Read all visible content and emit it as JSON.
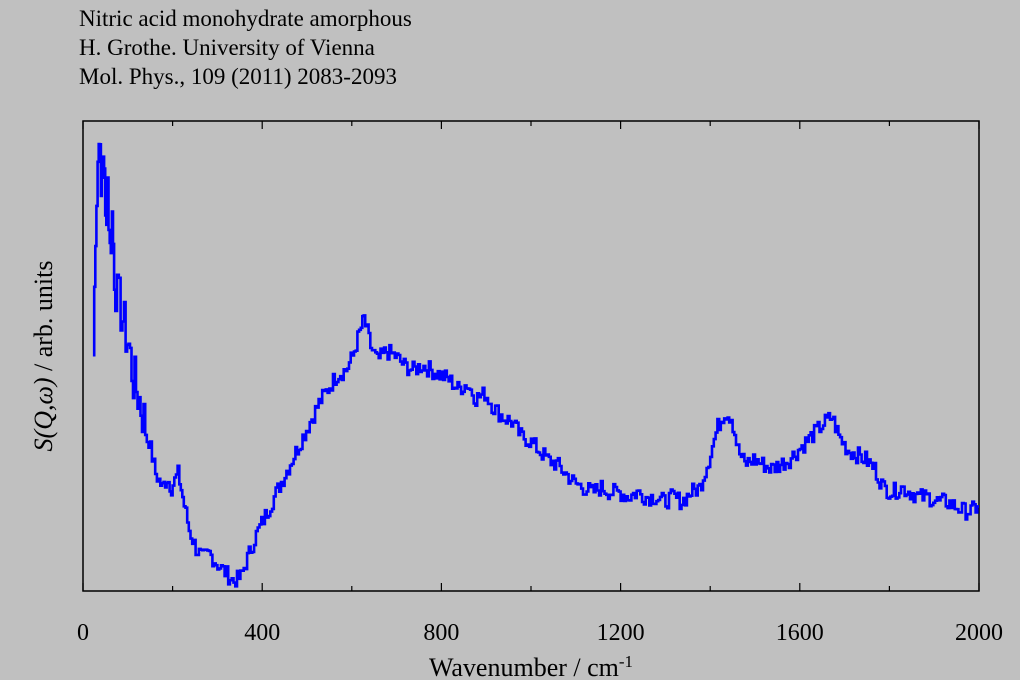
{
  "header": {
    "line1": "Nitric acid monohydrate amorphous",
    "line2": "H. Grothe. University of Vienna",
    "line3": "Mol. Phys., 109 (2011) 2083-2093"
  },
  "colors": {
    "background": "#c0c0c0",
    "series": "#0000ff",
    "axis": "#000000"
  },
  "chart_data": {
    "type": "line",
    "style": "step",
    "xlabel": "Wavenumber / cm-1",
    "ylabel": "S(Q,ω) / arb. units",
    "xlim": [
      0,
      2000
    ],
    "ylim": [
      0,
      1
    ],
    "x_ticks": [
      0,
      400,
      800,
      1200,
      1600,
      2000
    ],
    "y_ticks_labeled": false,
    "grid": false,
    "series": [
      {
        "points": [
          [
            25,
            0.5
          ],
          [
            30,
            0.78
          ],
          [
            35,
            0.92
          ],
          [
            38,
            0.98
          ],
          [
            42,
            0.83
          ],
          [
            47,
            0.95
          ],
          [
            52,
            0.78
          ],
          [
            57,
            0.88
          ],
          [
            62,
            0.72
          ],
          [
            67,
            0.8
          ],
          [
            72,
            0.68
          ],
          [
            80,
            0.62
          ],
          [
            88,
            0.6
          ],
          [
            95,
            0.56
          ],
          [
            105,
            0.52
          ],
          [
            115,
            0.45
          ],
          [
            125,
            0.42
          ],
          [
            135,
            0.38
          ],
          [
            150,
            0.32
          ],
          [
            165,
            0.25
          ],
          [
            180,
            0.22
          ],
          [
            190,
            0.24
          ],
          [
            200,
            0.22
          ],
          [
            215,
            0.25
          ],
          [
            225,
            0.2
          ],
          [
            240,
            0.13
          ],
          [
            255,
            0.09
          ],
          [
            270,
            0.07
          ],
          [
            285,
            0.08
          ],
          [
            300,
            0.06
          ],
          [
            320,
            0.04
          ],
          [
            340,
            0.02
          ],
          [
            355,
            0.03
          ],
          [
            370,
            0.07
          ],
          [
            390,
            0.12
          ],
          [
            410,
            0.16
          ],
          [
            430,
            0.2
          ],
          [
            450,
            0.24
          ],
          [
            470,
            0.28
          ],
          [
            490,
            0.32
          ],
          [
            510,
            0.36
          ],
          [
            530,
            0.4
          ],
          [
            550,
            0.43
          ],
          [
            570,
            0.46
          ],
          [
            590,
            0.47
          ],
          [
            605,
            0.5
          ],
          [
            620,
            0.55
          ],
          [
            630,
            0.58
          ],
          [
            645,
            0.52
          ],
          [
            660,
            0.49
          ],
          [
            680,
            0.51
          ],
          [
            700,
            0.5
          ],
          [
            720,
            0.48
          ],
          [
            740,
            0.47
          ],
          [
            760,
            0.48
          ],
          [
            780,
            0.47
          ],
          [
            800,
            0.46
          ],
          [
            820,
            0.45
          ],
          [
            840,
            0.43
          ],
          [
            860,
            0.44
          ],
          [
            880,
            0.41
          ],
          [
            900,
            0.42
          ],
          [
            920,
            0.39
          ],
          [
            940,
            0.37
          ],
          [
            960,
            0.36
          ],
          [
            980,
            0.33
          ],
          [
            1000,
            0.32
          ],
          [
            1020,
            0.3
          ],
          [
            1040,
            0.28
          ],
          [
            1060,
            0.27
          ],
          [
            1080,
            0.25
          ],
          [
            1100,
            0.23
          ],
          [
            1120,
            0.22
          ],
          [
            1140,
            0.21
          ],
          [
            1160,
            0.22
          ],
          [
            1180,
            0.21
          ],
          [
            1200,
            0.21
          ],
          [
            1220,
            0.2
          ],
          [
            1240,
            0.21
          ],
          [
            1260,
            0.2
          ],
          [
            1280,
            0.2
          ],
          [
            1300,
            0.19
          ],
          [
            1320,
            0.2
          ],
          [
            1340,
            0.19
          ],
          [
            1360,
            0.21
          ],
          [
            1380,
            0.22
          ],
          [
            1400,
            0.28
          ],
          [
            1420,
            0.35
          ],
          [
            1435,
            0.38
          ],
          [
            1450,
            0.37
          ],
          [
            1465,
            0.3
          ],
          [
            1480,
            0.27
          ],
          [
            1500,
            0.28
          ],
          [
            1520,
            0.27
          ],
          [
            1540,
            0.26
          ],
          [
            1560,
            0.27
          ],
          [
            1580,
            0.28
          ],
          [
            1600,
            0.3
          ],
          [
            1620,
            0.32
          ],
          [
            1640,
            0.34
          ],
          [
            1660,
            0.36
          ],
          [
            1675,
            0.37
          ],
          [
            1690,
            0.33
          ],
          [
            1710,
            0.3
          ],
          [
            1730,
            0.29
          ],
          [
            1750,
            0.28
          ],
          [
            1770,
            0.26
          ],
          [
            1790,
            0.22
          ],
          [
            1810,
            0.21
          ],
          [
            1830,
            0.22
          ],
          [
            1850,
            0.21
          ],
          [
            1870,
            0.2
          ],
          [
            1890,
            0.2
          ],
          [
            1910,
            0.19
          ],
          [
            1930,
            0.19
          ],
          [
            1950,
            0.18
          ],
          [
            1970,
            0.17
          ],
          [
            1985,
            0.17
          ],
          [
            2000,
            0.18
          ]
        ]
      }
    ]
  }
}
